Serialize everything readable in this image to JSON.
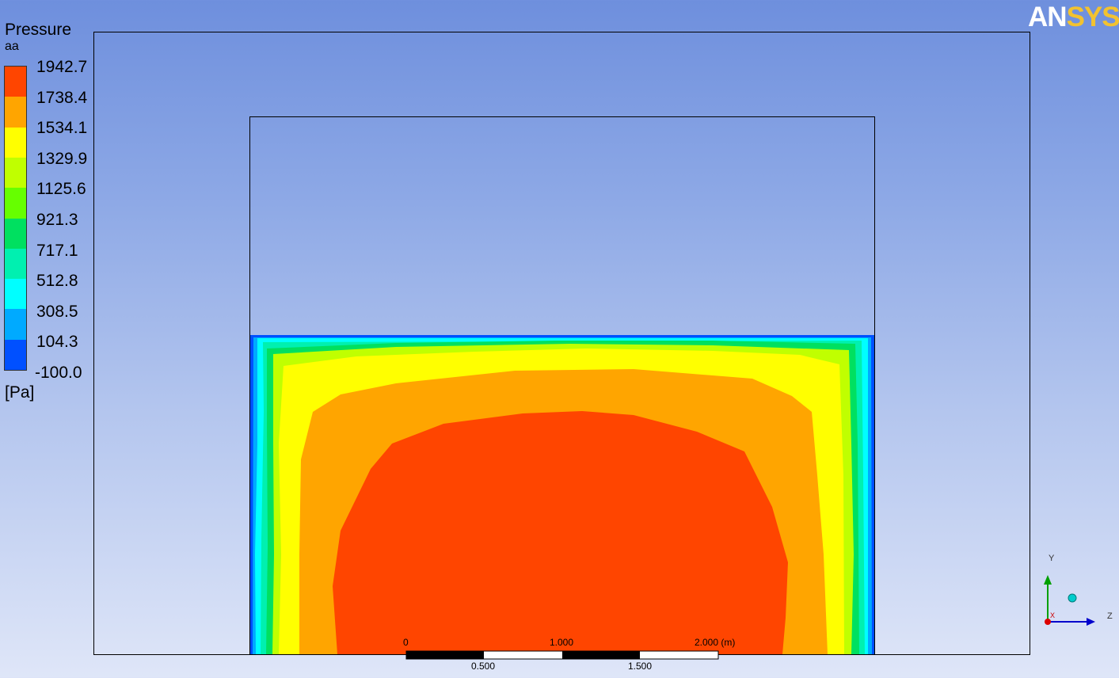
{
  "legend": {
    "title": "Pressure",
    "subtitle": "aa",
    "unit": "[Pa]",
    "ticks": [
      "1942.7",
      "1738.4",
      "1534.1",
      "1329.9",
      "1125.6",
      "921.3",
      "717.1",
      "512.8",
      "308.5",
      "104.3",
      "-100.0"
    ],
    "bands": [
      "#ff4500",
      "#ffa500",
      "#ffff00",
      "#c0ff00",
      "#66ff00",
      "#00e060",
      "#00f0b0",
      "#00ffff",
      "#00aaff",
      "#0050ff"
    ]
  },
  "logo": {
    "text_an": "AN",
    "text_sys": "SYS"
  },
  "scale_bar": {
    "top_labels": [
      "0",
      "1.000",
      "2.000  (m)"
    ],
    "bottom_labels": [
      "0.500",
      "1.500"
    ]
  },
  "axes": {
    "y": "Y",
    "z": "Z",
    "x": "X"
  },
  "colors": {
    "outer_domain": "#000000",
    "contour_red": "#ff4500",
    "contour_orange": "#ffa500",
    "contour_yellow": "#ffff00",
    "contour_lime": "#c0ff00",
    "contour_green": "#00e060",
    "contour_teal": "#00f0b0",
    "contour_cyan": "#00ffff",
    "contour_blue": "#0050ff"
  }
}
